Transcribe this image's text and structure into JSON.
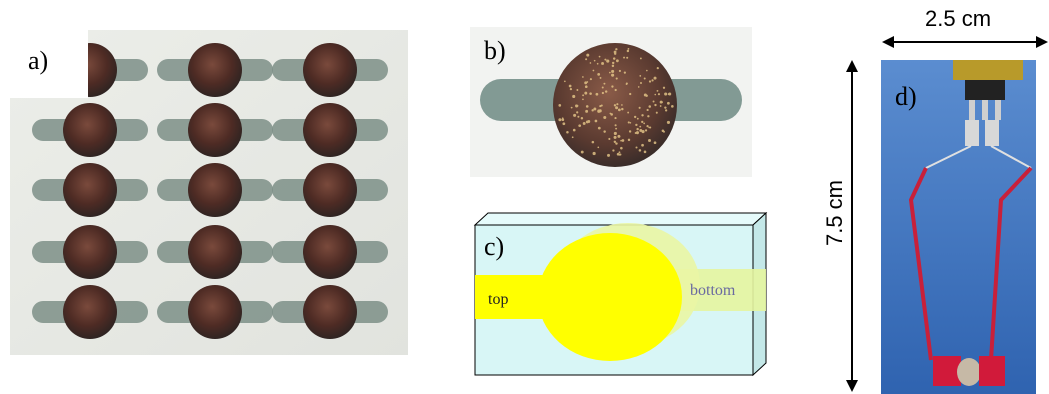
{
  "panels": {
    "a": {
      "label": "a)"
    },
    "b": {
      "label": "b)"
    },
    "c": {
      "label": "c)",
      "top_text": "top",
      "bottom_text": "bottom"
    },
    "d": {
      "label": "d)",
      "width_dim": "2.5 cm",
      "height_dim": "7.5 cm"
    }
  },
  "colors": {
    "substrate": "#e9ece7",
    "trace_green": "#7d8f87",
    "electrode_dark": "#4a2b24",
    "diagram_box": "#d6f5f5",
    "diagram_yellow": "#ffff00",
    "diagram_yellow_back": "#eaf7a0",
    "photo_blue": "#3a6fb8",
    "wire_red": "#c8203a"
  }
}
